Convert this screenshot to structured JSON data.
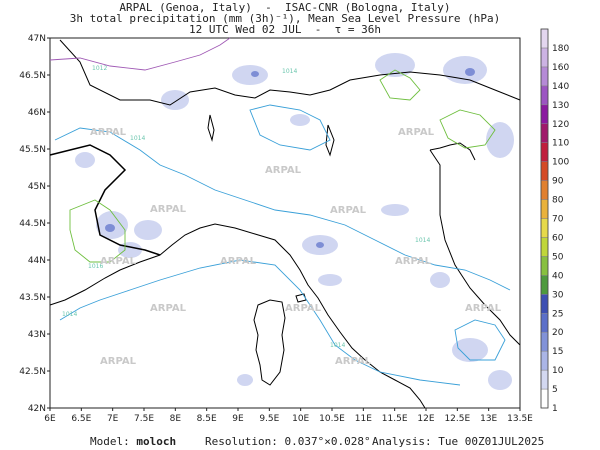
{
  "header": {
    "line1": "ARPAL (Genoa, Italy)  -  ISAC-CNR (Bologna, Italy)",
    "line2": "3h total precipitation (mm (3h)⁻¹), Mean Sea Level Pressure (hPa)",
    "line3": "12 UTC Wed 02 JUL  -  τ = 36h"
  },
  "footer": {
    "model_label": "Model:",
    "model_value": "moloch",
    "resolution_label": "Resolution:",
    "resolution_value": "0.037°×0.028°",
    "analysis_label": "Analysis:",
    "analysis_value": "Tue 00Z01JUL2025"
  },
  "map": {
    "lon_range": [
      6,
      13.5
    ],
    "lat_range": [
      42,
      47
    ],
    "lon_ticks": [
      "6E",
      "6.5E",
      "7E",
      "7.5E",
      "8E",
      "8.5E",
      "9E",
      "9.5E",
      "10E",
      "10.5E",
      "11E",
      "11.5E",
      "12E",
      "12.5E",
      "13E",
      "13.5E"
    ],
    "lat_ticks": [
      "47N",
      "46.5N",
      "46N",
      "45.5N",
      "45N",
      "44.5N",
      "44N",
      "43.5N",
      "43N",
      "42.5N",
      "42N"
    ],
    "watermark": "ARPAL",
    "isobar_labels": [
      "1012",
      "1014",
      "1016"
    ]
  },
  "colorbar": {
    "levels": [
      "1",
      "5",
      "10",
      "15",
      "20",
      "25",
      "30",
      "40",
      "50",
      "60",
      "70",
      "80",
      "90",
      "100",
      "110",
      "120",
      "130",
      "140",
      "160",
      "180"
    ],
    "colors": [
      "#ffffff",
      "#d3d8f0",
      "#aab5e6",
      "#8192d8",
      "#5b6fc9",
      "#3d4fb3",
      "#4e9a3e",
      "#88c040",
      "#c0d63a",
      "#e6d94a",
      "#e9b23c",
      "#e0802f",
      "#d44a26",
      "#c01f3d",
      "#a01a6b",
      "#8b1aa0",
      "#9c55c2",
      "#b58ad6",
      "#ccb3e3",
      "#e3d6ef"
    ]
  }
}
